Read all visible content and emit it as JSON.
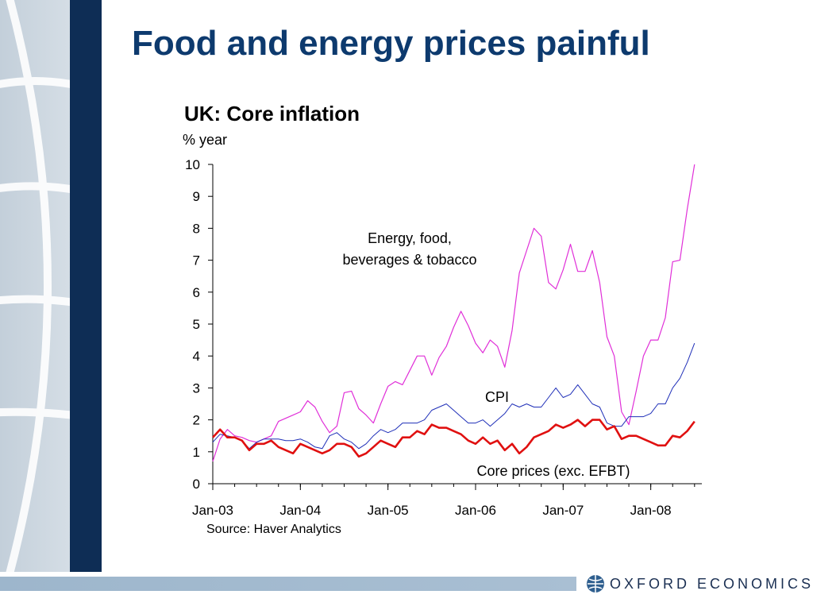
{
  "slide": {
    "title": "Food and energy prices painful",
    "logo_text": "OXFORD ECONOMICS"
  },
  "colors": {
    "title": "#0d3a6e",
    "energy_series": "#e02fd8",
    "cpi_series": "#1f2fb8",
    "core_series": "#e01010"
  },
  "chart_data": {
    "type": "line",
    "title": "UK: Core inflation",
    "ylabel": "% year",
    "source": "Source: Haver Analytics",
    "ylim": [
      0,
      10
    ],
    "yticks": [
      0,
      1,
      2,
      3,
      4,
      5,
      6,
      7,
      8,
      9,
      10
    ],
    "xlim": [
      0,
      67
    ],
    "x_tick_labels": [
      "Jan-03",
      "Jan-04",
      "Jan-05",
      "Jan-06",
      "Jan-07",
      "Jan-08"
    ],
    "x_tick_positions": [
      0,
      12,
      24,
      36,
      48,
      60
    ],
    "grid": false,
    "legend": "none",
    "series": [
      {
        "name": "Energy, food, beverages & tobacco",
        "label_lines": [
          "Energy, food,",
          "beverages & tobacco"
        ],
        "start": "Jan-03",
        "values": [
          0.7,
          1.4,
          1.7,
          1.5,
          1.45,
          1.35,
          1.3,
          1.4,
          1.5,
          1.95,
          2.05,
          2.15,
          2.25,
          2.6,
          2.4,
          1.95,
          1.6,
          1.8,
          2.85,
          2.9,
          2.35,
          2.15,
          1.9,
          2.5,
          3.05,
          3.2,
          3.1,
          3.55,
          4.0,
          4.0,
          3.4,
          3.95,
          4.3,
          4.9,
          5.4,
          4.95,
          4.4,
          4.1,
          4.5,
          4.3,
          3.65,
          4.8,
          6.6,
          7.3,
          8.0,
          7.75,
          6.3,
          6.1,
          6.7,
          7.5,
          6.65,
          6.65,
          7.3,
          6.3,
          4.6,
          4.0,
          2.25,
          1.85,
          2.9,
          4.0,
          4.5,
          4.5,
          5.2,
          6.95,
          7.0,
          8.6,
          10.0
        ]
      },
      {
        "name": "CPI",
        "start": "Jan-03",
        "values": [
          1.3,
          1.55,
          1.5,
          1.45,
          1.35,
          1.1,
          1.3,
          1.4,
          1.4,
          1.4,
          1.35,
          1.35,
          1.4,
          1.3,
          1.15,
          1.1,
          1.5,
          1.6,
          1.4,
          1.3,
          1.1,
          1.25,
          1.5,
          1.7,
          1.6,
          1.7,
          1.9,
          1.9,
          1.9,
          2.0,
          2.3,
          2.4,
          2.5,
          2.3,
          2.1,
          1.9,
          1.9,
          2.0,
          1.8,
          2.0,
          2.2,
          2.5,
          2.4,
          2.5,
          2.4,
          2.4,
          2.7,
          3.0,
          2.7,
          2.8,
          3.1,
          2.8,
          2.5,
          2.4,
          1.9,
          1.8,
          1.8,
          2.1,
          2.1,
          2.1,
          2.2,
          2.5,
          2.5,
          3.0,
          3.3,
          3.8,
          4.4
        ]
      },
      {
        "name": "Core prices (exc. EFBT)",
        "start": "Jan-03",
        "values": [
          1.45,
          1.7,
          1.45,
          1.45,
          1.35,
          1.05,
          1.25,
          1.25,
          1.35,
          1.15,
          1.05,
          0.95,
          1.25,
          1.15,
          1.05,
          0.95,
          1.05,
          1.25,
          1.25,
          1.15,
          0.85,
          0.95,
          1.15,
          1.35,
          1.25,
          1.15,
          1.45,
          1.45,
          1.65,
          1.55,
          1.85,
          1.75,
          1.75,
          1.65,
          1.55,
          1.35,
          1.25,
          1.45,
          1.25,
          1.35,
          1.05,
          1.25,
          0.95,
          1.15,
          1.45,
          1.55,
          1.65,
          1.85,
          1.75,
          1.85,
          2.0,
          1.8,
          2.0,
          2.0,
          1.7,
          1.8,
          1.4,
          1.5,
          1.5,
          1.4,
          1.3,
          1.2,
          1.2,
          1.5,
          1.45,
          1.65,
          1.95
        ]
      }
    ]
  }
}
